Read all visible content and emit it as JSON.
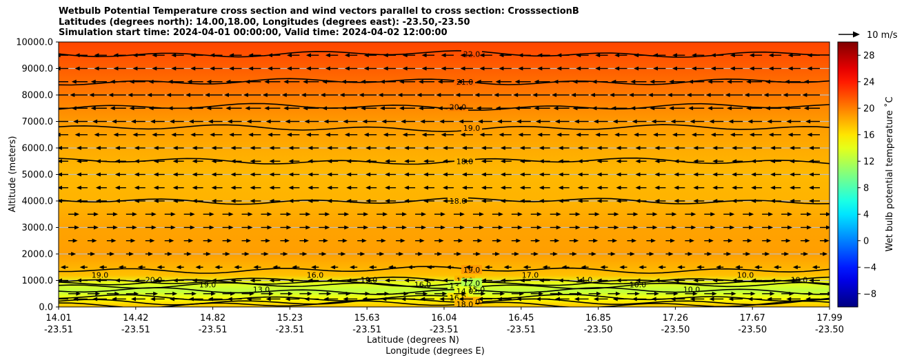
{
  "chart_data": {
    "type": "heatmap",
    "title_lines": [
      "Wetbulb Potential Temperature cross section and wind vectors parallel to cross section: CrosssectionB",
      "Latitudes (degrees north): 14.00,18.00, Longitudes (degrees east): -23.50,-23.50",
      "Simulation start time: 2024-04-01 00:00:00, Valid time: 2024-04-02 12:00:00"
    ],
    "ylabel": "Altitude (meters)",
    "xlabel_lines": [
      "Latitude (degrees N)",
      "Longitude (degrees E)"
    ],
    "ylim": [
      0,
      10000
    ],
    "yticks": [
      0,
      1000,
      2000,
      3000,
      4000,
      5000,
      6000,
      7000,
      8000,
      9000,
      10000
    ],
    "ytick_labels": [
      "0.0",
      "1000.0",
      "2000.0",
      "3000.0",
      "4000.0",
      "5000.0",
      "6000.0",
      "7000.0",
      "8000.0",
      "9000.0",
      "10000.0"
    ],
    "xlim": [
      14.01,
      17.99
    ],
    "xticks_lat": [
      "14.01",
      "14.42",
      "14.82",
      "15.23",
      "15.63",
      "16.04",
      "16.45",
      "16.85",
      "17.26",
      "17.67",
      "17.99"
    ],
    "xticks_lon": [
      "-23.51",
      "-23.51",
      "-23.51",
      "-23.51",
      "-23.51",
      "-23.51",
      "-23.51",
      "-23.50",
      "-23.50",
      "-23.50",
      "-23.50"
    ],
    "colorbar": {
      "label": "Wet bulb potential temperature $^\\circ$C",
      "label_display": "Wet bulb potential temperature ˚C",
      "range": [
        -10,
        30
      ],
      "ticks": [
        -8,
        -4,
        0,
        4,
        8,
        12,
        16,
        20,
        24,
        28
      ],
      "tick_labels": [
        "−8",
        "−4",
        "0",
        "4",
        "8",
        "12",
        "16",
        "20",
        "24",
        "28"
      ]
    },
    "quiver_key": {
      "label": "10 m/s"
    },
    "temperature_profile": [
      {
        "altitude": 0,
        "value": 17.5
      },
      {
        "altitude": 300,
        "value": 15.0
      },
      {
        "altitude": 600,
        "value": 12.5
      },
      {
        "altitude": 900,
        "value": 14.0
      },
      {
        "altitude": 1200,
        "value": 17.5
      },
      {
        "altitude": 2000,
        "value": 18.8
      },
      {
        "altitude": 3000,
        "value": 18.6
      },
      {
        "altitude": 4000,
        "value": 18.0
      },
      {
        "altitude": 5000,
        "value": 17.8
      },
      {
        "altitude": 6000,
        "value": 18.3
      },
      {
        "altitude": 7000,
        "value": 19.0
      },
      {
        "altitude": 8000,
        "value": 20.2
      },
      {
        "altitude": 9000,
        "value": 21.3
      },
      {
        "altitude": 10000,
        "value": 22.3
      }
    ],
    "contour_lines": [
      {
        "altitude": 9550,
        "label": "22.0"
      },
      {
        "altitude": 8500,
        "label": "21.0"
      },
      {
        "altitude": 7550,
        "label": "20.0"
      },
      {
        "altitude": 6750,
        "label": "19.0"
      },
      {
        "altitude": 5500,
        "label": "18.0"
      },
      {
        "altitude": 4000,
        "label": "18.0"
      },
      {
        "altitude": 1400,
        "label": "19.0"
      },
      {
        "altitude": 1000,
        "label": "18.0"
      },
      {
        "altitude": 800,
        "label": "13.0"
      },
      {
        "altitude": 900,
        "label": "12.0"
      },
      {
        "altitude": 600,
        "label": "14.0"
      },
      {
        "altitude": 350,
        "label": "16.0"
      },
      {
        "altitude": 200,
        "label": "18.0"
      },
      {
        "altitude": 100,
        "label": "18.0"
      }
    ],
    "extra_labels": [
      "19.0",
      "20.0",
      "19.0",
      "13.0",
      "16.0",
      "19.0",
      "16.0",
      "15.0",
      "17.0",
      "14.0",
      "10.0",
      "10.0",
      "10.0",
      "19.0"
    ],
    "wind_rows": [
      {
        "altitude": 9500,
        "u": -6
      },
      {
        "altitude": 9000,
        "u": -6
      },
      {
        "altitude": 8500,
        "u": -8
      },
      {
        "altitude": 8000,
        "u": -9
      },
      {
        "altitude": 7500,
        "u": -8
      },
      {
        "altitude": 7000,
        "u": -7
      },
      {
        "altitude": 6500,
        "u": -6
      },
      {
        "altitude": 6000,
        "u": -5
      },
      {
        "altitude": 5500,
        "u": -5
      },
      {
        "altitude": 5000,
        "u": -5
      },
      {
        "altitude": 4500,
        "u": -5
      },
      {
        "altitude": 4000,
        "u": -5
      },
      {
        "altitude": 3500,
        "u": 5
      },
      {
        "altitude": 3000,
        "u": 5
      },
      {
        "altitude": 2500,
        "u": 4
      },
      {
        "altitude": 2000,
        "u": 3
      },
      {
        "altitude": 1500,
        "u": -3
      },
      {
        "altitude": 1000,
        "u": -5
      },
      {
        "altitude": 500,
        "u": 6
      },
      {
        "altitude": 300,
        "u": -7
      }
    ]
  }
}
